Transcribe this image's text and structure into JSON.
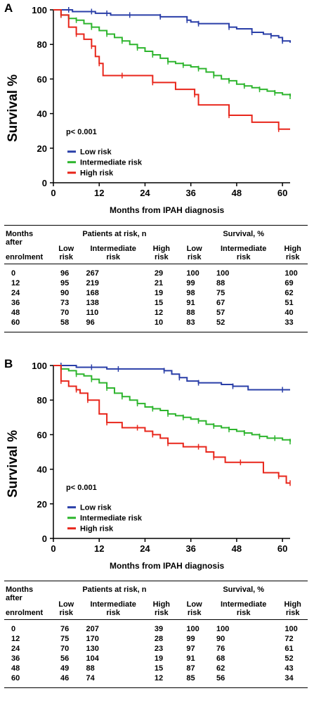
{
  "panels": [
    {
      "letter": "A",
      "ylabel": "Survival %",
      "xlabel": "Months from IPAH diagnosis",
      "pvalue": "p< 0.001",
      "legend": [
        "Low risk",
        "Intermediate risk",
        "High risk"
      ],
      "table": {
        "col_header": "Months",
        "col_header2": "after",
        "col_header3": "enrolment",
        "group1": "Patients at risk, n",
        "group2": "Survival, %",
        "sub": [
          [
            "Low",
            "risk"
          ],
          [
            "Intermediate",
            "risk"
          ],
          [
            "High",
            "risk"
          ]
        ],
        "rows": [
          [
            "0",
            "96",
            "267",
            "29",
            "100",
            "100",
            "100"
          ],
          [
            "12",
            "95",
            "219",
            "21",
            "99",
            "88",
            "69"
          ],
          [
            "24",
            "90",
            "168",
            "19",
            "98",
            "75",
            "62"
          ],
          [
            "36",
            "73",
            "138",
            "15",
            "91",
            "67",
            "51"
          ],
          [
            "48",
            "70",
            "110",
            "12",
            "88",
            "57",
            "40"
          ],
          [
            "60",
            "58",
            "96",
            "10",
            "83",
            "52",
            "33"
          ]
        ]
      }
    },
    {
      "letter": "B",
      "ylabel": "Survival %",
      "xlabel": "Months from IPAH diagnosis",
      "pvalue": "p< 0.001",
      "legend": [
        "Low risk",
        "Intermediate risk",
        "High risk"
      ],
      "table": {
        "col_header": "Months",
        "col_header2": "after",
        "col_header3": "enrolment",
        "group1": "Patients at risk, n",
        "group2": "Survival, %",
        "sub": [
          [
            "Low",
            "risk"
          ],
          [
            "Intermediate",
            "risk"
          ],
          [
            "High",
            "risk"
          ]
        ],
        "rows": [
          [
            "0",
            "76",
            "207",
            "39",
            "100",
            "100",
            "100"
          ],
          [
            "12",
            "75",
            "170",
            "28",
            "99",
            "90",
            "72"
          ],
          [
            "24",
            "70",
            "130",
            "23",
            "97",
            "76",
            "61"
          ],
          [
            "36",
            "56",
            "104",
            "19",
            "91",
            "68",
            "52"
          ],
          [
            "48",
            "49",
            "88",
            "15",
            "87",
            "62",
            "43"
          ],
          [
            "60",
            "46",
            "74",
            "12",
            "85",
            "56",
            "34"
          ]
        ]
      }
    }
  ],
  "chart_data": [
    {
      "type": "line",
      "step": true,
      "panel": "A",
      "xlabel": "Months from IPAH diagnosis",
      "ylabel": "Survival %",
      "xlim": [
        0,
        62
      ],
      "ylim": [
        0,
        100
      ],
      "xticks": [
        0,
        12,
        24,
        36,
        48,
        60
      ],
      "yticks": [
        0,
        20,
        40,
        60,
        80,
        100
      ],
      "legend_position": "bottom-left",
      "annotation": "p< 0.001",
      "series": [
        {
          "name": "Low risk",
          "color": "#2a3fa8",
          "x": [
            0,
            4,
            5,
            10,
            11,
            14,
            15,
            20,
            27,
            28,
            33,
            35,
            36,
            38,
            44,
            46,
            48,
            52,
            55,
            57,
            59,
            60,
            62
          ],
          "y": [
            100,
            100,
            99,
            99,
            98,
            98,
            97,
            97,
            97,
            96,
            96,
            94,
            93,
            92,
            92,
            90,
            89,
            87,
            86,
            85,
            84,
            82,
            81
          ]
        },
        {
          "name": "Intermediate risk",
          "color": "#2db52d",
          "x": [
            0,
            2,
            4,
            6,
            8,
            10,
            12,
            14,
            16,
            18,
            20,
            22,
            24,
            26,
            28,
            30,
            32,
            34,
            36,
            38,
            40,
            42,
            44,
            46,
            48,
            50,
            52,
            54,
            56,
            58,
            60,
            62
          ],
          "y": [
            100,
            97,
            95,
            94,
            92,
            90,
            88,
            86,
            84,
            82,
            80,
            78,
            76,
            74,
            72,
            70,
            69,
            68,
            67,
            66,
            64,
            62,
            60,
            59,
            57,
            56,
            55,
            54,
            53,
            52,
            51,
            50
          ]
        },
        {
          "name": "High risk",
          "color": "#e8261b",
          "x": [
            0,
            2,
            4,
            6,
            8,
            10,
            11,
            12,
            13,
            18,
            22,
            26,
            32,
            37,
            38,
            46,
            52,
            59,
            62
          ],
          "y": [
            100,
            97,
            90,
            86,
            83,
            79,
            73,
            69,
            62,
            62,
            62,
            58,
            54,
            51,
            45,
            39,
            35,
            31,
            31
          ]
        }
      ]
    },
    {
      "type": "line",
      "step": true,
      "panel": "B",
      "xlabel": "Months from IPAH diagnosis",
      "ylabel": "Survival %",
      "xlim": [
        0,
        62
      ],
      "ylim": [
        0,
        100
      ],
      "xticks": [
        0,
        12,
        24,
        36,
        48,
        60
      ],
      "yticks": [
        0,
        20,
        40,
        60,
        80,
        100
      ],
      "legend_position": "bottom-left",
      "annotation": "p< 0.001",
      "series": [
        {
          "name": "Low risk",
          "color": "#2a3fa8",
          "x": [
            0,
            2,
            6,
            10,
            14,
            17,
            24,
            29,
            31,
            33,
            35,
            38,
            44,
            47,
            51,
            60,
            62
          ],
          "y": [
            100,
            100,
            99,
            99,
            98,
            98,
            98,
            97,
            95,
            93,
            91,
            90,
            89,
            88,
            86,
            86,
            86
          ]
        },
        {
          "name": "Intermediate risk",
          "color": "#2db52d",
          "x": [
            0,
            2,
            4,
            6,
            8,
            10,
            12,
            14,
            16,
            18,
            20,
            22,
            24,
            26,
            28,
            30,
            32,
            34,
            36,
            38,
            40,
            42,
            44,
            46,
            48,
            50,
            52,
            54,
            56,
            58,
            60,
            62
          ],
          "y": [
            100,
            98,
            97,
            95,
            94,
            92,
            90,
            87,
            84,
            82,
            80,
            78,
            76,
            75,
            74,
            72,
            71,
            70,
            69,
            68,
            66,
            65,
            64,
            63,
            62,
            61,
            60,
            59,
            58,
            58,
            57,
            56
          ]
        },
        {
          "name": "High risk",
          "color": "#e8261b",
          "x": [
            0,
            2,
            4,
            6,
            7,
            9,
            12,
            14,
            18,
            22,
            24,
            26,
            28,
            30,
            34,
            38,
            40,
            42,
            45,
            49,
            55,
            59,
            61,
            62
          ],
          "y": [
            100,
            91,
            88,
            86,
            84,
            80,
            72,
            67,
            64,
            64,
            62,
            60,
            58,
            55,
            53,
            53,
            50,
            47,
            44,
            44,
            38,
            36,
            32,
            32
          ]
        }
      ]
    }
  ]
}
